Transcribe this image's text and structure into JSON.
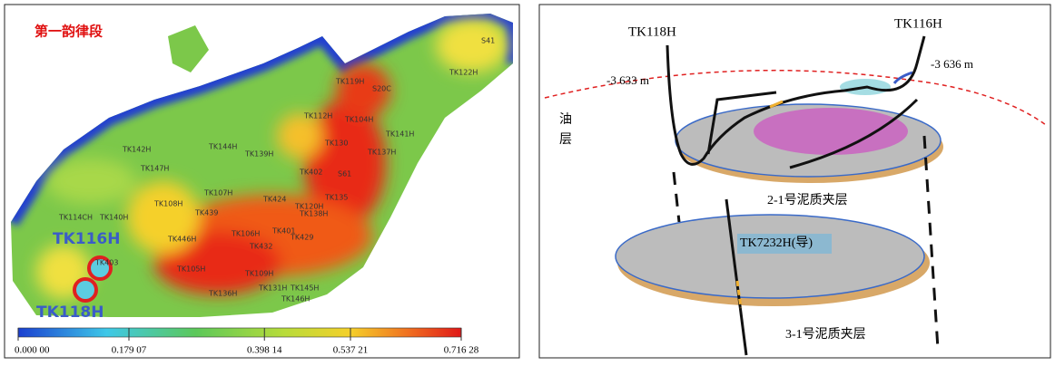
{
  "left_panel": {
    "title": "第一韵律段",
    "wells": [
      "TK119H",
      "S20C",
      "TK122H",
      "S41",
      "TK112H",
      "TK104H",
      "TK142H",
      "TK144H",
      "TK139H",
      "TK130",
      "TK141H",
      "TK137H",
      "TK147H",
      "TK402",
      "S61",
      "TK107H",
      "TK108H",
      "TK424",
      "TK120H",
      "TK135",
      "TK138H",
      "TK439",
      "TK401",
      "TK114CH",
      "TK140H",
      "TK429",
      "TK106H",
      "TK446H",
      "TK432",
      "TK403",
      "TK105H",
      "TK109H",
      "TK145H",
      "TK136H",
      "TK131H",
      "TK146H"
    ],
    "highlight_wells": [
      "TK116H",
      "TK118H"
    ],
    "colorbar": {
      "lim": [
        0,
        0.71628
      ],
      "ticks": [
        {
          "value": 0,
          "label": "0.000 00"
        },
        {
          "value": 0.17907,
          "label": "0.179 07"
        },
        {
          "value": 0.39814,
          "label": "0.398 14"
        },
        {
          "value": 0.53721,
          "label": "0.537 21"
        },
        {
          "value": 0.71628,
          "label": "0.716 28"
        }
      ]
    }
  },
  "right_panel": {
    "wells": [
      "TK118H",
      "TK116H"
    ],
    "depths": [
      "-3 633  m",
      "-3 636  m"
    ],
    "layer_label": [
      "油",
      "层"
    ],
    "interlayers": [
      "2-1号泥质夹层",
      "3-1号泥质夹层"
    ],
    "guide_well": "TK7232H(导)"
  }
}
